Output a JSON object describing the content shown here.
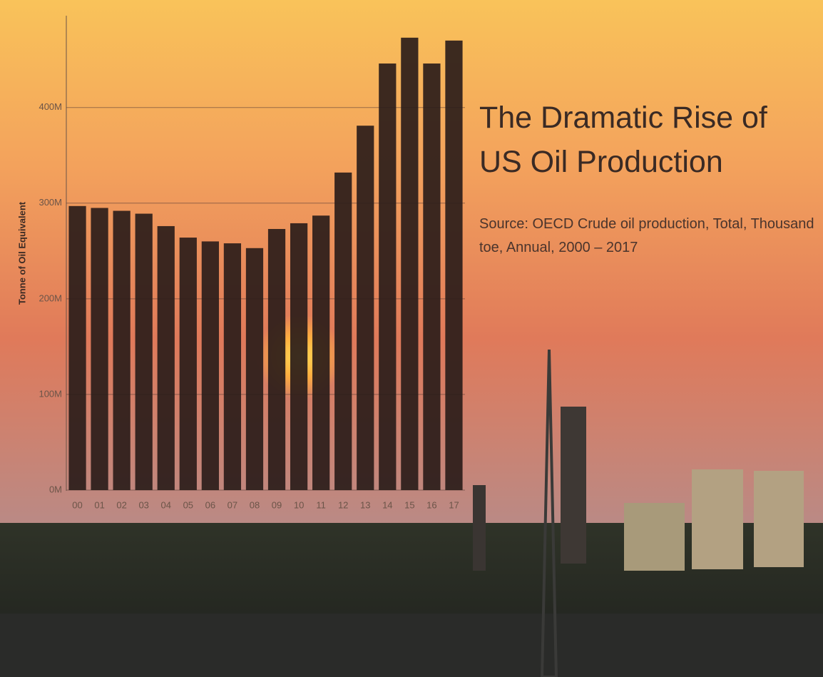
{
  "chart_data": {
    "type": "bar",
    "title": "The Dramatic Rise of US Oil Production",
    "subtitle": "Source: OECD Crude oil production, Total, Thousand toe, Annual, 2000 – 2017",
    "y_label": "Tonne of Oil Equivalent",
    "categories": [
      "00",
      "01",
      "02",
      "03",
      "04",
      "05",
      "06",
      "07",
      "08",
      "09",
      "10",
      "11",
      "12",
      "13",
      "14",
      "15",
      "16",
      "17"
    ],
    "values": [
      297000000,
      295000000,
      292000000,
      289000000,
      276000000,
      264000000,
      260000000,
      258000000,
      253000000,
      273000000,
      279000000,
      287000000,
      332000000,
      381000000,
      446000000,
      473000000,
      446000000,
      470000000
    ],
    "color": "#2b1d1a",
    "ylim": [
      0,
      496000000
    ],
    "yticks": [
      {
        "value": 0,
        "label": "0M"
      },
      {
        "value": 100000000,
        "label": "100M"
      },
      {
        "value": 200000000,
        "label": "200M"
      },
      {
        "value": 300000000,
        "label": "300M"
      },
      {
        "value": 400000000,
        "label": "400M"
      }
    ],
    "grid": true
  }
}
